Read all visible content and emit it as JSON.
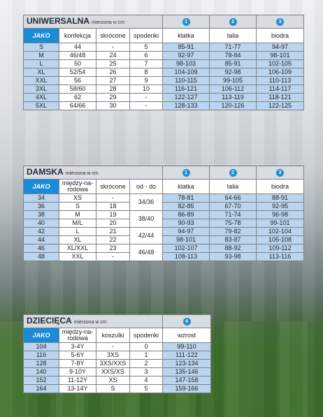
{
  "uni": {
    "title": "UNIWERSALNA",
    "subtitle": "mierzona w cm",
    "circles": [
      "1",
      "2",
      "3"
    ],
    "brand": "JAKO",
    "headers": [
      "konfekcja",
      "skrócone",
      "spodenki",
      "klatka",
      "talia",
      "biodra"
    ],
    "rows": [
      [
        "S",
        "44",
        "-",
        "5",
        "85-91",
        "71-77",
        "94-97"
      ],
      [
        "M",
        "46/48",
        "24",
        "6",
        "92-97",
        "78-84",
        "98-101"
      ],
      [
        "L",
        "50",
        "25",
        "7",
        "98-103",
        "85-91",
        "102-105"
      ],
      [
        "XL",
        "52/54",
        "26",
        "8",
        "104-109",
        "92-98",
        "106-109"
      ],
      [
        "XXL",
        "56",
        "27",
        "9",
        "110-115",
        "99-105",
        "110-113"
      ],
      [
        "3XL",
        "58/60",
        "28",
        "10",
        "116-121",
        "106-112",
        "114-117"
      ],
      [
        "4XL",
        "62",
        "29",
        "-",
        "122-127",
        "113-119",
        "118-121"
      ],
      [
        "5XL",
        "64/66",
        "30",
        "-",
        "128-133",
        "120-126",
        "122-125"
      ]
    ]
  },
  "dam": {
    "title": "DAMSKA",
    "subtitle": "mierzona w cm",
    "circles": [
      "1",
      "2",
      "3"
    ],
    "brand": "JAKO",
    "headers": [
      "między-na-rodowa",
      "skrócone",
      "od - do",
      "klatka",
      "talia",
      "biodra"
    ],
    "header_lines": [
      [
        "między-na-",
        "rodowa"
      ],
      [
        "skrócone"
      ],
      [
        "od - do"
      ],
      [
        "klatka"
      ],
      [
        "talia"
      ],
      [
        "biodra"
      ]
    ],
    "rows": [
      [
        "34",
        "XS",
        "-",
        "78-81",
        "64-66",
        "88-91"
      ],
      [
        "36",
        "S",
        "18",
        "82-85",
        "67-70",
        "92-95"
      ],
      [
        "38",
        "M",
        "19",
        "86-89",
        "71-74",
        "96-98"
      ],
      [
        "40",
        "M/L",
        "20",
        "90-93",
        "75-78",
        "99-101"
      ],
      [
        "42",
        "L",
        "21",
        "94-97",
        "79-82",
        "102-104"
      ],
      [
        "44",
        "XL",
        "22",
        "98-101",
        "83-87",
        "105-108"
      ],
      [
        "46",
        "XL/XXL",
        "23",
        "102-107",
        "88-92",
        "109-112"
      ],
      [
        "48",
        "XXL",
        "-",
        "108-113",
        "93-98",
        "113-116"
      ]
    ],
    "odd": [
      "34/36",
      "38/40",
      "42/44",
      "46/48"
    ]
  },
  "dz": {
    "title": "DZIECIĘCA",
    "subtitle": "mierzona w cm",
    "circle": "4",
    "brand": "JAKO",
    "header_lines": [
      [
        "między-na-",
        "rodowa"
      ],
      [
        "koszulki"
      ],
      [
        "spodenki"
      ],
      [
        "wzrost"
      ]
    ],
    "rows": [
      [
        "104",
        "3-4Y",
        "-",
        "0",
        "99-110"
      ],
      [
        "116",
        "5-6Y",
        "3XS",
        "1",
        "111-122"
      ],
      [
        "128",
        "7-8Y",
        "3XS/XXS",
        "2",
        "123-134"
      ],
      [
        "140",
        "9-10Y",
        "XXS/XS",
        "3",
        "135-146"
      ],
      [
        "152",
        "11-12Y",
        "XS",
        "4",
        "147-158"
      ],
      [
        "164",
        "13-14Y",
        "S",
        "5",
        "159-166"
      ]
    ]
  }
}
